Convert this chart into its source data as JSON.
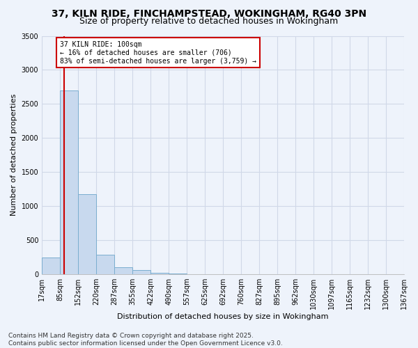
{
  "title": "37, KILN RIDE, FINCHAMPSTEAD, WOKINGHAM, RG40 3PN",
  "subtitle": "Size of property relative to detached houses in Wokingham",
  "xlabel": "Distribution of detached houses by size in Wokingham",
  "ylabel": "Number of detached properties",
  "bar_color": "#c8d9ee",
  "bar_edge_color": "#7aadcf",
  "background_color": "#eef3fb",
  "grid_color": "#d0d8e8",
  "bin_edges": [
    17,
    85,
    152,
    220,
    287,
    355,
    422,
    490,
    557,
    625,
    692,
    760,
    827,
    895,
    962,
    1030,
    1097,
    1165,
    1232,
    1300,
    1367
  ],
  "bar_heights": [
    250,
    2700,
    1180,
    290,
    100,
    60,
    20,
    10,
    5,
    3,
    2,
    2,
    1,
    1,
    1,
    1,
    1,
    0,
    0,
    0
  ],
  "property_size": 100,
  "annotation_line1": "37 KILN RIDE: 100sqm",
  "annotation_line2": "← 16% of detached houses are smaller (706)",
  "annotation_line3": "83% of semi-detached houses are larger (3,759) →",
  "annotation_box_color": "white",
  "annotation_box_edge": "#cc0000",
  "red_line_color": "#cc0000",
  "ylim": [
    0,
    3500
  ],
  "yticks": [
    0,
    500,
    1000,
    1500,
    2000,
    2500,
    3000,
    3500
  ],
  "footer_line1": "Contains HM Land Registry data © Crown copyright and database right 2025.",
  "footer_line2": "Contains public sector information licensed under the Open Government Licence v3.0.",
  "title_fontsize": 10,
  "subtitle_fontsize": 9,
  "tick_label_fontsize": 7,
  "ylabel_fontsize": 8,
  "xlabel_fontsize": 8,
  "footer_fontsize": 6.5
}
